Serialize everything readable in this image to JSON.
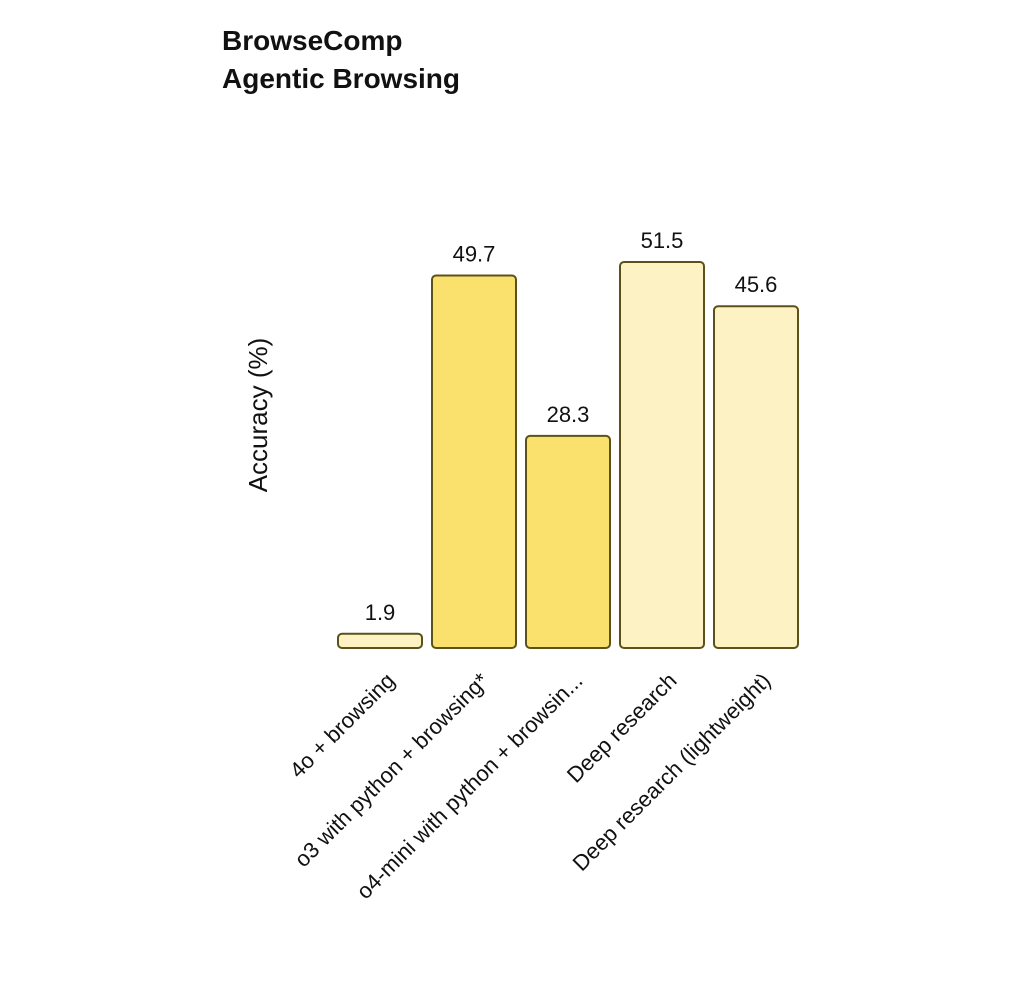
{
  "chart_data": {
    "type": "bar",
    "title": "BrowseComp",
    "subtitle": "Agentic Browsing",
    "xlabel": "",
    "ylabel": "Accuracy (%)",
    "ylim": [
      0,
      55
    ],
    "grid": false,
    "categories": [
      "4o + browsing",
      "o3 with python + browsing*",
      "o4-mini with python + browsin...",
      "Deep research",
      "Deep research (lightweight)"
    ],
    "values": [
      1.9,
      49.7,
      28.3,
      51.5,
      45.6
    ],
    "value_labels": [
      "1.9",
      "49.7",
      "28.3",
      "51.5",
      "45.6"
    ],
    "bar_fill_colors": [
      "#FCF2C3",
      "#FAE16E",
      "#FAE16E",
      "#FCF2C3",
      "#FCF2C3"
    ],
    "bar_stroke_color": "#5C5219"
  }
}
